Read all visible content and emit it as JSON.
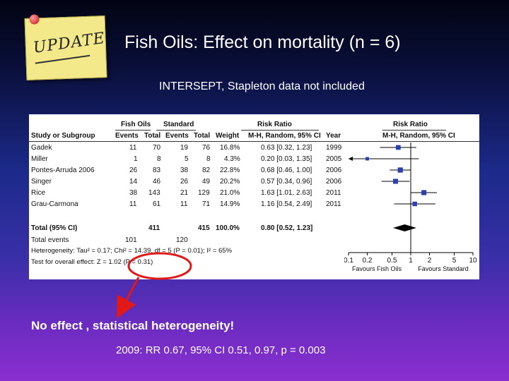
{
  "badge": {
    "text": "UPDATE"
  },
  "slide": {
    "title": "Fish Oils: Effect on mortality (n = 6)",
    "subtitle": "INTERSEPT, Stapleton data not included",
    "effect_note": "No effect , statistical heterogeneity!",
    "result_2009": "2009: RR 0.67, 95% CI 0.51, 0.97, p = 0.003"
  },
  "forest": {
    "group_headers": {
      "treatment": "Fish Oils",
      "control": "Standard",
      "rr_left": "Risk Ratio",
      "rr_right": "Risk Ratio"
    },
    "columns": [
      "Study or Subgroup",
      "Events",
      "Total",
      "Events",
      "Total",
      "Weight",
      "M-H, Random, 95% CI",
      "Year",
      "M-H, Random, 95% CI"
    ],
    "rows": [
      {
        "study": "Gadek",
        "e1": "11",
        "t1": "70",
        "e2": "19",
        "t2": "76",
        "weight": "16.8%",
        "ci": "0.63 [0.32, 1.23]",
        "year": "1999"
      },
      {
        "study": "Miller",
        "e1": "1",
        "t1": "8",
        "e2": "5",
        "t2": "8",
        "weight": "4.3%",
        "ci": "0.20 [0.03, 1.35]",
        "year": "2005"
      },
      {
        "study": "Pontes-Arruda 2006",
        "e1": "26",
        "t1": "83",
        "e2": "38",
        "t2": "82",
        "weight": "22.8%",
        "ci": "0.68 [0.46, 1.00]",
        "year": "2006"
      },
      {
        "study": "Singer",
        "e1": "14",
        "t1": "46",
        "e2": "26",
        "t2": "49",
        "weight": "20.2%",
        "ci": "0.57 [0.34, 0.96]",
        "year": "2006"
      },
      {
        "study": "Rice",
        "e1": "38",
        "t1": "143",
        "e2": "21",
        "t2": "129",
        "weight": "21.0%",
        "ci": "1.63 [1.01, 2.63]",
        "year": "2011"
      },
      {
        "study": "Grau-Carmona",
        "e1": "11",
        "t1": "61",
        "e2": "11",
        "t2": "71",
        "weight": "14.9%",
        "ci": "1.16 [0.54, 2.49]",
        "year": "2011"
      }
    ],
    "total": {
      "label": "Total (95% CI)",
      "t1": "411",
      "t2": "415",
      "weight": "100.0%",
      "ci": "0.80 [0.52, 1.23]"
    },
    "total_events": {
      "label": "Total events",
      "e1": "101",
      "e2": "120"
    },
    "heterogeneity": "Heterogeneity: Tau² = 0.17; Chi² = 14.39, df = 5 (P = 0.01); I² = 65%",
    "overall_effect": "Test for overall effect: Z = 1.02 (P = 0.31)",
    "axis_ticks": [
      "0.1",
      "0.2",
      "0.5",
      "1",
      "2",
      "5",
      "10"
    ],
    "favours_left": "Favours Fish Oils",
    "favours_right": "Favours Standard"
  },
  "chart_data": {
    "type": "scatter",
    "x_scale": "log",
    "xlim": [
      0.1,
      10
    ],
    "categories": [
      "Gadek",
      "Miller",
      "Pontes-Arruda 2006",
      "Singer",
      "Rice",
      "Grau-Carmona"
    ],
    "points": [
      {
        "study": "Gadek",
        "rr": 0.63,
        "lo": 0.32,
        "hi": 1.23,
        "weight": 16.8
      },
      {
        "study": "Miller",
        "rr": 0.2,
        "lo": 0.03,
        "hi": 1.35,
        "weight": 4.3
      },
      {
        "study": "Pontes-Arruda 2006",
        "rr": 0.68,
        "lo": 0.46,
        "hi": 1.0,
        "weight": 22.8
      },
      {
        "study": "Singer",
        "rr": 0.57,
        "lo": 0.34,
        "hi": 0.96,
        "weight": 20.2
      },
      {
        "study": "Rice",
        "rr": 1.63,
        "lo": 1.01,
        "hi": 2.63,
        "weight": 21.0
      },
      {
        "study": "Grau-Carmona",
        "rr": 1.16,
        "lo": 0.54,
        "hi": 2.49,
        "weight": 14.9
      }
    ],
    "pooled": {
      "rr": 0.8,
      "lo": 0.52,
      "hi": 1.23
    },
    "colors": {
      "marker": "#2a3fb0",
      "pooled": "#000000",
      "annotation": "#e01818"
    }
  }
}
